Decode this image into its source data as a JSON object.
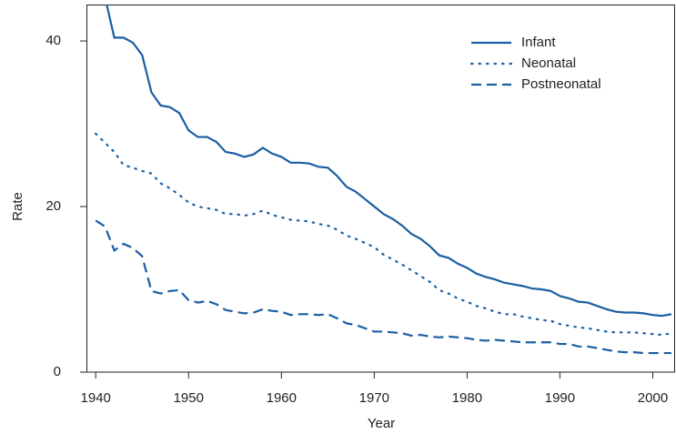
{
  "chart_data": {
    "type": "line",
    "xlabel": "Year",
    "ylabel": "Rate",
    "x": [
      1940,
      1941,
      1942,
      1943,
      1944,
      1945,
      1946,
      1947,
      1948,
      1949,
      1950,
      1951,
      1952,
      1953,
      1954,
      1955,
      1956,
      1957,
      1958,
      1959,
      1960,
      1961,
      1962,
      1963,
      1964,
      1965,
      1966,
      1967,
      1968,
      1969,
      1970,
      1971,
      1972,
      1973,
      1974,
      1975,
      1976,
      1977,
      1978,
      1979,
      1980,
      1981,
      1982,
      1983,
      1984,
      1985,
      1986,
      1987,
      1988,
      1989,
      1990,
      1991,
      1992,
      1993,
      1994,
      1995,
      1996,
      1997,
      1998,
      1999,
      2000,
      2001,
      2002
    ],
    "series": [
      {
        "name": "Infant",
        "color": "#1a5ea3",
        "linestyle": "solid",
        "values": [
          47.0,
          45.3,
          40.4,
          40.4,
          39.8,
          38.3,
          33.8,
          32.2,
          32.0,
          31.3,
          29.2,
          28.4,
          28.4,
          27.8,
          26.6,
          26.4,
          26.0,
          26.3,
          27.1,
          26.4,
          26.0,
          25.3,
          25.3,
          25.2,
          24.8,
          24.7,
          23.7,
          22.4,
          21.8,
          20.9,
          20.0,
          19.1,
          18.5,
          17.7,
          16.7,
          16.1,
          15.2,
          14.1,
          13.8,
          13.1,
          12.6,
          11.9,
          11.5,
          11.2,
          10.8,
          10.6,
          10.4,
          10.1,
          10.0,
          9.8,
          9.2,
          8.9,
          8.5,
          8.4,
          8.0,
          7.6,
          7.3,
          7.2,
          7.2,
          7.1,
          6.9,
          6.8,
          7.0
        ]
      },
      {
        "name": "Neonatal",
        "color": "#1a5ea3",
        "linestyle": "dotted",
        "values": [
          28.8,
          27.7,
          26.6,
          25.0,
          24.7,
          24.3,
          24.0,
          22.8,
          22.2,
          21.4,
          20.5,
          20.0,
          19.8,
          19.6,
          19.1,
          19.1,
          18.9,
          19.1,
          19.5,
          19.0,
          18.7,
          18.4,
          18.3,
          18.2,
          17.9,
          17.7,
          17.2,
          16.5,
          16.1,
          15.6,
          15.1,
          14.2,
          13.6,
          13.0,
          12.3,
          11.6,
          10.9,
          9.9,
          9.5,
          8.9,
          8.5,
          8.0,
          7.7,
          7.3,
          7.0,
          7.0,
          6.7,
          6.5,
          6.3,
          6.2,
          5.8,
          5.6,
          5.4,
          5.3,
          5.1,
          4.9,
          4.8,
          4.8,
          4.8,
          4.7,
          4.6,
          4.5,
          4.7
        ]
      },
      {
        "name": "Postneonatal",
        "color": "#1a5ea3",
        "linestyle": "dashed",
        "values": [
          18.3,
          17.6,
          14.7,
          15.5,
          15.0,
          14.0,
          9.8,
          9.5,
          9.8,
          9.9,
          8.7,
          8.4,
          8.6,
          8.2,
          7.5,
          7.3,
          7.1,
          7.2,
          7.6,
          7.4,
          7.3,
          6.9,
          7.0,
          7.0,
          6.9,
          7.0,
          6.5,
          5.9,
          5.7,
          5.3,
          4.9,
          4.9,
          4.8,
          4.7,
          4.4,
          4.5,
          4.3,
          4.2,
          4.3,
          4.2,
          4.1,
          3.9,
          3.8,
          3.9,
          3.8,
          3.7,
          3.6,
          3.6,
          3.6,
          3.6,
          3.4,
          3.4,
          3.1,
          3.1,
          2.9,
          2.7,
          2.5,
          2.4,
          2.4,
          2.3,
          2.3,
          2.3,
          2.3
        ]
      }
    ],
    "xlim": [
      1939,
      2002.5
    ],
    "xticks": [
      1940,
      1950,
      1960,
      1970,
      1980,
      1990,
      2000
    ],
    "ylim": [
      0,
      44.4
    ],
    "yticks": [
      0,
      20,
      40
    ],
    "legend": "upper-right",
    "grid": false
  }
}
